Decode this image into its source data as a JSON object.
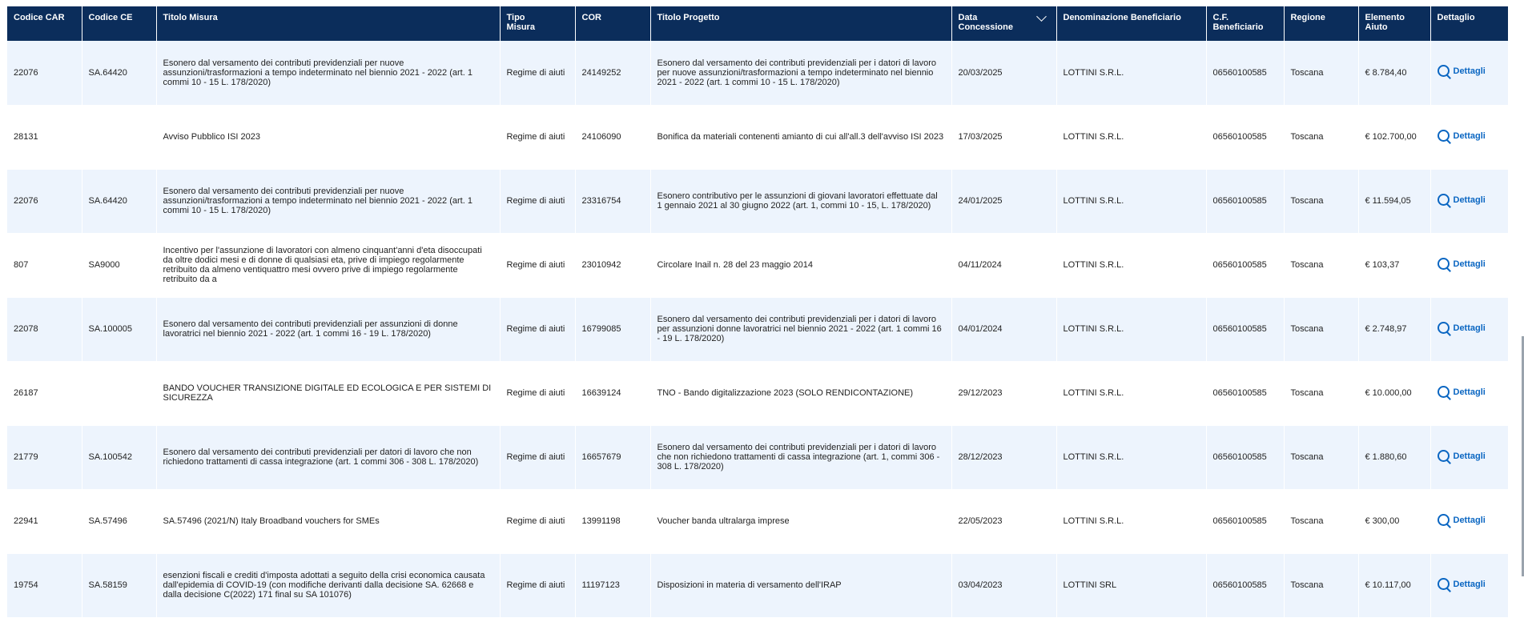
{
  "columns": {
    "codice_car": "Codice CAR",
    "codice_ce": "Codice CE",
    "titolo_misura": "Titolo Misura",
    "tipo_misura": "Tipo Misura",
    "cor": "COR",
    "titolo_progetto": "Titolo Progetto",
    "data_concessione": "Data Concessione",
    "denominazione": "Denominazione Beneficiario",
    "cf": "C.F. Beneficiario",
    "regione": "Regione",
    "elemento": "Elemento Aiuto",
    "dettaglio": "Dettaglio"
  },
  "details_label": "Dettagli",
  "rows": [
    {
      "car": "22076",
      "ce": "SA.64420",
      "titolo_misura": "Esonero dal versamento dei contributi previdenziali per nuove assunzioni/trasformazioni a tempo indeterminato nel biennio 2021 - 2022 (art. 1 commi 10 - 15 L. 178/2020)",
      "tipo": "Regime di aiuti",
      "cor": "24149252",
      "titolo_progetto": "Esonero dal versamento dei contributi previdenziali per i datori di lavoro per nuove assunzioni/trasformazioni a tempo indeterminato nel biennio 2021 - 2022 (art. 1 commi 10 - 15 L. 178/2020)",
      "data": "20/03/2025",
      "denominazione": "LOTTINI S.R.L.",
      "cf": "06560100585",
      "regione": "Toscana",
      "elemento": "€ 8.784,40"
    },
    {
      "car": "28131",
      "ce": "",
      "titolo_misura": "Avviso Pubblico ISI 2023",
      "tipo": "Regime di aiuti",
      "cor": "24106090",
      "titolo_progetto": "Bonifica da materiali contenenti amianto di cui all'all.3 dell'avviso ISI 2023",
      "data": "17/03/2025",
      "denominazione": "LOTTINI S.R.L.",
      "cf": "06560100585",
      "regione": "Toscana",
      "elemento": "€ 102.700,00"
    },
    {
      "car": "22076",
      "ce": "SA.64420",
      "titolo_misura": "Esonero dal versamento dei contributi previdenziali per nuove assunzioni/trasformazioni a tempo indeterminato nel biennio 2021 - 2022 (art. 1 commi 10 - 15 L. 178/2020)",
      "tipo": "Regime di aiuti",
      "cor": "23316754",
      "titolo_progetto": "Esonero contributivo per le assunzioni di giovani lavoratori effettuate dal 1 gennaio 2021 al 30 giugno 2022 (art. 1, commi 10 - 15, L. 178/2020)",
      "data": "24/01/2025",
      "denominazione": "LOTTINI S.R.L.",
      "cf": "06560100585",
      "regione": "Toscana",
      "elemento": "€ 11.594,05"
    },
    {
      "car": "807",
      "ce": "SA9000",
      "titolo_misura": "Incentivo per l'assunzione di lavoratori con almeno cinquant'anni d'eta disoccupati da oltre dodici mesi e di donne di qualsiasi eta, prive di impiego regolarmente retribuito da almeno ventiquattro mesi ovvero prive di impiego regolarmente retribuito da a",
      "tipo": "Regime di aiuti",
      "cor": "23010942",
      "titolo_progetto": "Circolare Inail n. 28 del 23 maggio 2014",
      "data": "04/11/2024",
      "denominazione": "LOTTINI S.R.L.",
      "cf": "06560100585",
      "regione": "Toscana",
      "elemento": "€ 103,37"
    },
    {
      "car": "22078",
      "ce": "SA.100005",
      "titolo_misura": "Esonero dal versamento dei contributi previdenziali per assunzioni di donne lavoratrici nel biennio 2021 - 2022 (art. 1 commi 16 - 19 L. 178/2020)",
      "tipo": "Regime di aiuti",
      "cor": "16799085",
      "titolo_progetto": "Esonero dal versamento dei contributi previdenziali per i datori di lavoro per assunzioni donne lavoratrici nel biennio 2021 - 2022 (art. 1 commi 16 - 19 L. 178/2020)",
      "data": "04/01/2024",
      "denominazione": "LOTTINI S.R.L.",
      "cf": "06560100585",
      "regione": "Toscana",
      "elemento": "€ 2.748,97"
    },
    {
      "car": "26187",
      "ce": "",
      "titolo_misura": "BANDO VOUCHER TRANSIZIONE DIGITALE ED ECOLOGICA E PER SISTEMI DI SICUREZZA",
      "tipo": "Regime di aiuti",
      "cor": "16639124",
      "titolo_progetto": "TNO - Bando digitalizzazione 2023 (SOLO RENDICONTAZIONE)",
      "data": "29/12/2023",
      "denominazione": "LOTTINI S.R.L.",
      "cf": "06560100585",
      "regione": "Toscana",
      "elemento": "€ 10.000,00"
    },
    {
      "car": "21779",
      "ce": "SA.100542",
      "titolo_misura": "Esonero dal versamento dei contributi previdenziali per datori di lavoro che non richiedono trattamenti di cassa integrazione (art. 1 commi 306 - 308 L. 178/2020)",
      "tipo": "Regime di aiuti",
      "cor": "16657679",
      "titolo_progetto": "Esonero dal versamento dei contributi previdenziali per i datori di lavoro che non richiedono trattamenti di cassa integrazione (art. 1, commi 306 - 308 L. 178/2020)",
      "data": "28/12/2023",
      "denominazione": "LOTTINI S.R.L.",
      "cf": "06560100585",
      "regione": "Toscana",
      "elemento": "€ 1.880,60"
    },
    {
      "car": "22941",
      "ce": "SA.57496",
      "titolo_misura": "SA.57496 (2021/N) Italy Broadband vouchers for SMEs",
      "tipo": "Regime di aiuti",
      "cor": "13991198",
      "titolo_progetto": "Voucher banda ultralarga imprese",
      "data": "22/05/2023",
      "denominazione": "LOTTINI S.R.L.",
      "cf": "06560100585",
      "regione": "Toscana",
      "elemento": "€ 300,00"
    },
    {
      "car": "19754",
      "ce": "SA.58159",
      "titolo_misura": "esenzioni fiscali e crediti d'imposta adottati a seguito della crisi economica causata dall'epidemia di COVID-19 (con modifiche derivanti dalla decisione SA. 62668 e dalla decisione C(2022) 171 final su SA 101076)",
      "tipo": "Regime di aiuti",
      "cor": "11197123",
      "titolo_progetto": "Disposizioni in materia di versamento dell'IRAP",
      "data": "03/04/2023",
      "denominazione": "LOTTINI SRL",
      "cf": "06560100585",
      "regione": "Toscana",
      "elemento": "€ 10.117,00"
    }
  ],
  "colors": {
    "header_bg": "#0b2d5b",
    "stripe": "#edf4fd",
    "link": "#0a66c2"
  }
}
